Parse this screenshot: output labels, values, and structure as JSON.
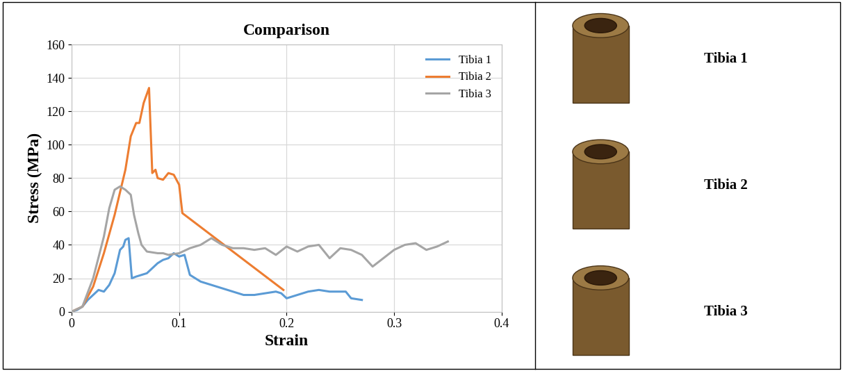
{
  "chart_data": {
    "type": "line",
    "title": "Comparison",
    "x_label": "Strain",
    "y_label": "Stress (MPa)",
    "xlim": [
      0,
      0.4
    ],
    "xticks": [
      0,
      0.1,
      0.2,
      0.3,
      0.4
    ],
    "ylim": [
      0,
      160
    ],
    "yticks": [
      0,
      20,
      40,
      60,
      80,
      100,
      120,
      140,
      160
    ],
    "grid": true,
    "legend": "upper right",
    "series": [
      {
        "name": "Tibia 1",
        "color": "#5B9BD5",
        "x": [
          0,
          0.005,
          0.01,
          0.015,
          0.02,
          0.025,
          0.03,
          0.035,
          0.04,
          0.045,
          0.048,
          0.05,
          0.053,
          0.056,
          0.06,
          0.07,
          0.08,
          0.085,
          0.09,
          0.095,
          0.1,
          0.105,
          0.11,
          0.12,
          0.13,
          0.14,
          0.15,
          0.16,
          0.17,
          0.18,
          0.19,
          0.195,
          0.2,
          0.21,
          0.22,
          0.23,
          0.24,
          0.25,
          0.255,
          0.26,
          0.27
        ],
        "values": [
          0,
          1,
          3,
          7,
          10,
          13,
          12,
          16,
          23,
          37,
          39,
          43,
          44,
          20,
          21,
          23,
          29,
          31,
          32,
          35,
          33,
          34,
          22,
          18,
          16,
          14,
          12,
          10,
          10,
          11,
          12,
          11,
          8,
          10,
          12,
          13,
          12,
          12,
          12,
          8,
          7
        ]
      },
      {
        "name": "Tibia 2",
        "color": "#ED7D31",
        "x": [
          0,
          0.01,
          0.02,
          0.03,
          0.04,
          0.05,
          0.055,
          0.06,
          0.063,
          0.067,
          0.072,
          0.075,
          0.078,
          0.08,
          0.085,
          0.09,
          0.095,
          0.1,
          0.103,
          0.197
        ],
        "values": [
          0,
          3,
          15,
          35,
          58,
          85,
          105,
          113,
          113,
          125,
          134,
          83,
          85,
          80,
          79,
          83,
          82,
          76,
          59,
          13
        ]
      },
      {
        "name": "Tibia 3",
        "color": "#A5A5A5",
        "x": [
          0,
          0.01,
          0.02,
          0.03,
          0.035,
          0.04,
          0.045,
          0.05,
          0.055,
          0.058,
          0.062,
          0.065,
          0.07,
          0.08,
          0.085,
          0.09,
          0.1,
          0.11,
          0.12,
          0.13,
          0.14,
          0.15,
          0.16,
          0.17,
          0.18,
          0.19,
          0.2,
          0.21,
          0.22,
          0.23,
          0.24,
          0.25,
          0.26,
          0.27,
          0.28,
          0.29,
          0.3,
          0.31,
          0.32,
          0.33,
          0.34,
          0.35
        ],
        "values": [
          0,
          3,
          20,
          45,
          62,
          73,
          75,
          73,
          70,
          58,
          47,
          40,
          36,
          35,
          35,
          34,
          35,
          38,
          40,
          44,
          40,
          38,
          38,
          37,
          38,
          34,
          39,
          36,
          39,
          40,
          32,
          38,
          37,
          34,
          27,
          32,
          37,
          40,
          41,
          37,
          39,
          42
        ]
      }
    ]
  },
  "photos": {
    "labels": [
      "Tibia 1",
      "Tibia 2",
      "Tibia 3"
    ]
  }
}
